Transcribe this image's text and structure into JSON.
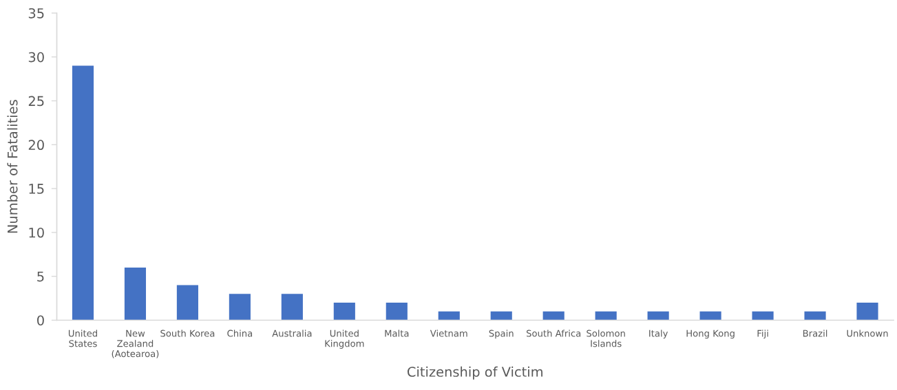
{
  "chart_data": {
    "type": "bar",
    "xlabel": "Citizenship of Victim",
    "ylabel": "Number of Fatalities",
    "categories": [
      "United\nStates",
      "New\nZealand\n(Aotearoa)",
      "South Korea",
      "China",
      "Australia",
      "United\nKingdom",
      "Malta",
      "Vietnam",
      "Spain",
      "South Africa",
      "Solomon\nIslands",
      "Italy",
      "Hong Kong",
      "Fiji",
      "Brazil",
      "Unknown"
    ],
    "values": [
      29,
      6,
      4,
      3,
      3,
      2,
      2,
      1,
      1,
      1,
      1,
      1,
      1,
      1,
      1,
      2
    ],
    "color": "#4472c4",
    "ylim": [
      0,
      35
    ],
    "yticks": [
      0,
      5,
      10,
      15,
      20,
      25,
      30,
      35
    ],
    "grid": false
  }
}
